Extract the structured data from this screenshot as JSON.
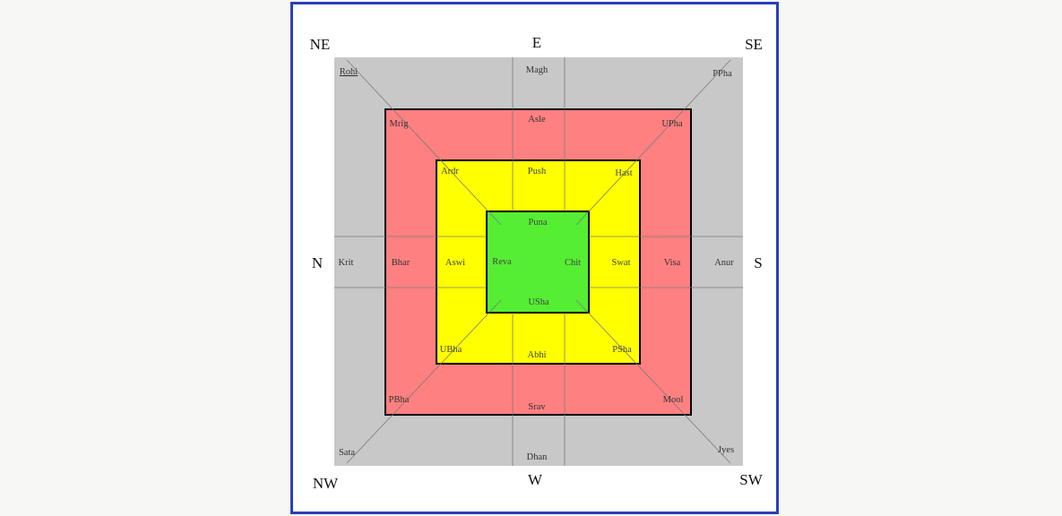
{
  "colors": {
    "outer_ring": "#c8c8c8",
    "ring_2": "#ff8080",
    "ring_3": "#ffff00",
    "center": "#55ee33",
    "frame_border": "#2a3fb8"
  },
  "directions": {
    "ne": "NE",
    "e": "E",
    "se": "SE",
    "n": "N",
    "s": "S",
    "nw": "NW",
    "w": "W",
    "sw": "SW"
  },
  "outer_ring": {
    "rohi": "Rohi",
    "magh": "Magh",
    "ppha": "PPha",
    "krit": "Krit",
    "anur": "Anur",
    "sata": "Sata",
    "dhan": "Dhan",
    "jyes": "Jyes"
  },
  "ring_2": {
    "mrig": "Mrig",
    "asle": "Asle",
    "upha": "UPha",
    "bhar": "Bhar",
    "visa": "Visa",
    "pbha": "PBha",
    "srav": "Srav",
    "mool": "Mool"
  },
  "ring_3": {
    "ardr": "Ardr",
    "push": "Push",
    "hast": "Hast",
    "aswi": "Aswi",
    "swat": "Swat",
    "ubha": "UBha",
    "abhi": "Abhi",
    "psha": "PSha"
  },
  "center": {
    "puna": "Puna",
    "reva": "Reva",
    "chit": "Chit",
    "usha": "USha"
  }
}
